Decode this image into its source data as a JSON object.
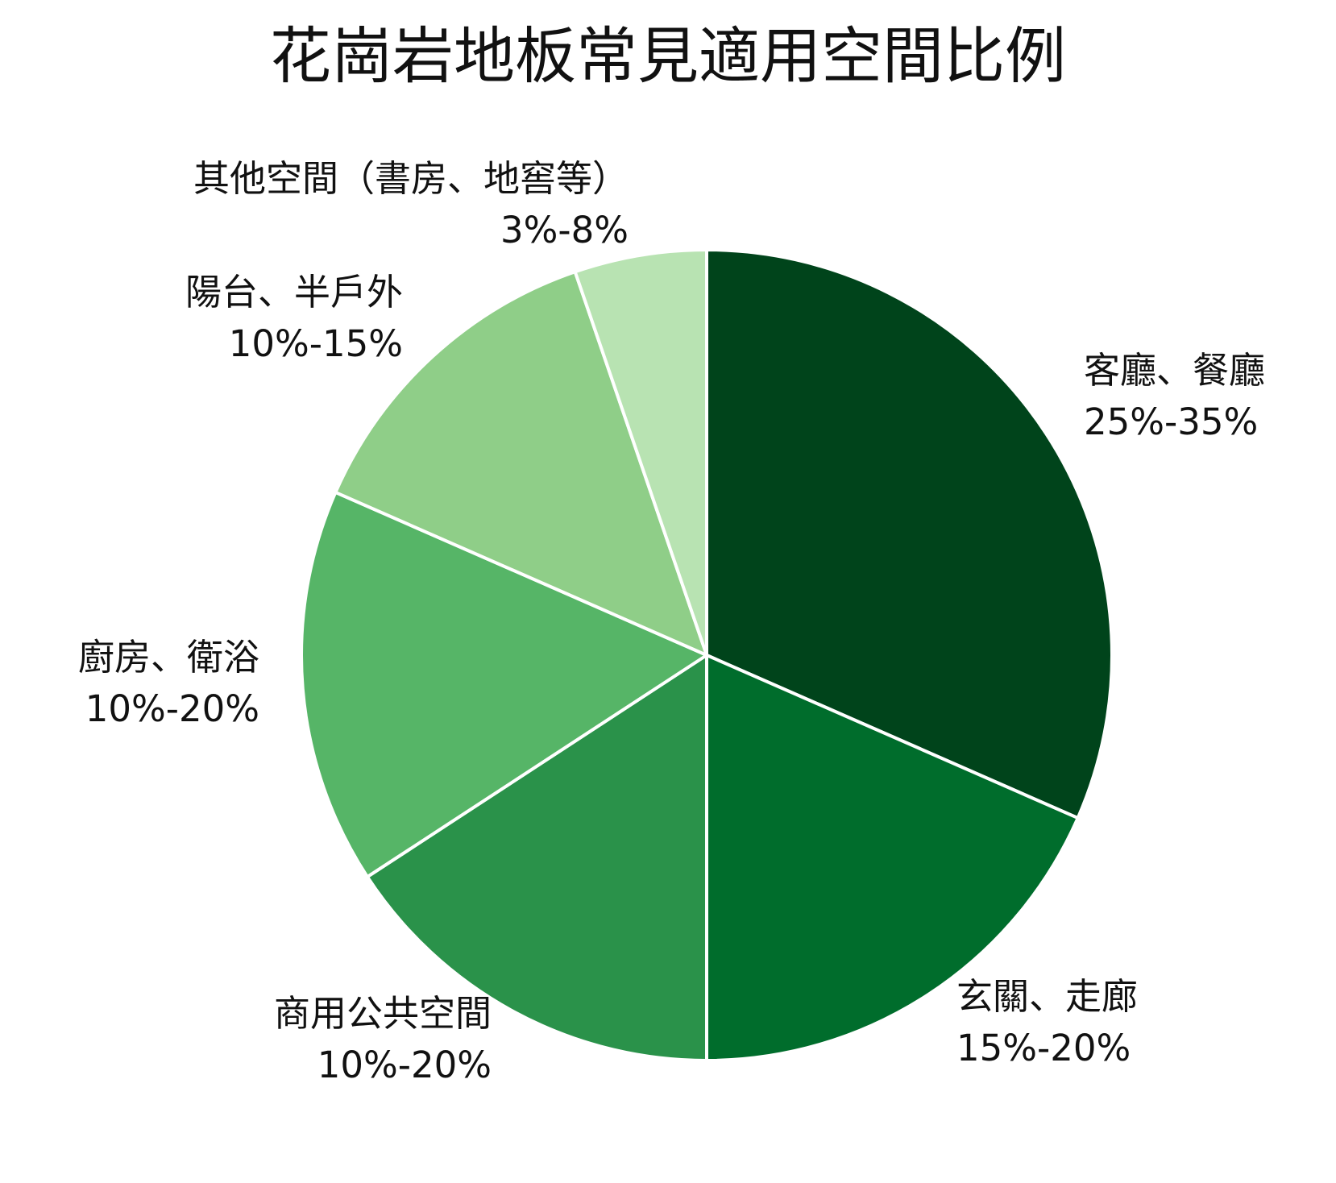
{
  "chart_data": {
    "type": "pie",
    "title": "花崗岩地板常見適用空間比例",
    "slices": [
      {
        "name": "客廳、餐廳",
        "range": "25%-35%",
        "value": 30,
        "color": "#00441b"
      },
      {
        "name": "玄關、走廊",
        "range": "15%-20%",
        "value": 17.5,
        "color": "#006d2c"
      },
      {
        "name": "商用公共空間",
        "range": "10%-20%",
        "value": 15,
        "color": "#2a924a"
      },
      {
        "name": "廚房、衛浴",
        "range": "10%-20%",
        "value": 15,
        "color": "#56b567"
      },
      {
        "name": "陽台、半戶外",
        "range": "10%-15%",
        "value": 12.5,
        "color": "#8fce88"
      },
      {
        "name": "其他空間（書房、地窖等）",
        "range": "3%-8%",
        "value": 5,
        "color": "#b8e3b2"
      }
    ],
    "start_angle": "12 o'clock",
    "direction": "clockwise",
    "legend": "none",
    "slice_border_color": "#ffffff"
  }
}
